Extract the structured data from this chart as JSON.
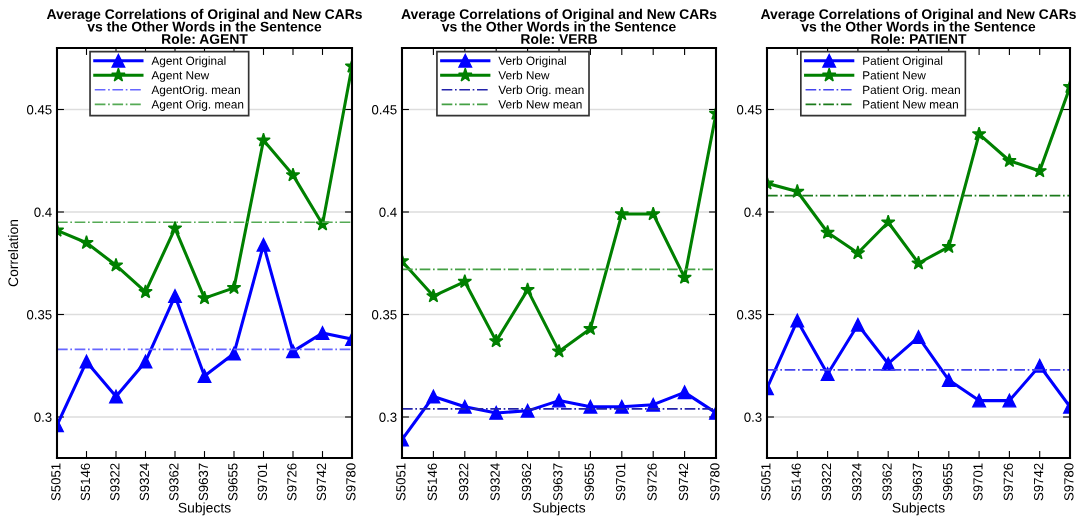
{
  "chart_data": [
    {
      "type": "line",
      "title": "Average Correlations of Original and New CARs\nvs the Other Words in the Sentence\nRole: AGENT",
      "xlabel": "Subjects",
      "ylabel": "Correlation",
      "categories": [
        "S5051",
        "S5146",
        "S9322",
        "S9324",
        "S9362",
        "S9637",
        "S9655",
        "S9701",
        "S9726",
        "S9742",
        "S9780"
      ],
      "series": [
        {
          "name": "Agent Original",
          "color": "#0000ff",
          "marker": "triangle",
          "values": [
            0.296,
            0.327,
            0.31,
            0.327,
            0.359,
            0.32,
            0.331,
            0.384,
            0.332,
            0.341,
            0.338
          ]
        },
        {
          "name": "Agent New",
          "color": "#008000",
          "marker": "star",
          "values": [
            0.391,
            0.385,
            0.374,
            0.361,
            0.392,
            0.358,
            0.363,
            0.435,
            0.418,
            0.394,
            0.471
          ]
        }
      ],
      "ref_lines": [
        {
          "axis": "y",
          "value": 0.333,
          "label": "AgentOrig. mean",
          "color": "#6666ff",
          "line_style": "dashdot"
        },
        {
          "axis": "y",
          "value": 0.395,
          "label": "Agent Orig. mean",
          "color": "#55aa55",
          "line_style": "dashdot"
        }
      ],
      "ylim": [
        0.28,
        0.48
      ],
      "yticks": [
        0.3,
        0.35,
        0.4,
        0.45
      ],
      "grid": "y",
      "legend": "top left",
      "line_style": "solid"
    },
    {
      "type": "line",
      "title": "Average Correlations of Original and New CARs\nvs the Other Words in the Sentence\nRole: VERB",
      "xlabel": "Subjects",
      "categories": [
        "S5051",
        "S5146",
        "S9322",
        "S9324",
        "S9362",
        "S9637",
        "S9655",
        "S9701",
        "S9726",
        "S9742",
        "S9780"
      ],
      "series": [
        {
          "name": "Verb Original",
          "color": "#0000ff",
          "marker": "triangle",
          "values": [
            0.289,
            0.31,
            0.305,
            0.302,
            0.303,
            0.308,
            0.305,
            0.305,
            0.306,
            0.312,
            0.302
          ]
        },
        {
          "name": "Verb New",
          "color": "#008000",
          "marker": "star",
          "values": [
            0.376,
            0.359,
            0.366,
            0.337,
            0.362,
            0.332,
            0.343,
            0.399,
            0.399,
            0.368,
            0.448
          ]
        }
      ],
      "ref_lines": [
        {
          "axis": "y",
          "value": 0.304,
          "label": "Verb Orig. mean",
          "color": "#2222aa",
          "line_style": "dashdot"
        },
        {
          "axis": "y",
          "value": 0.372,
          "label": "Verb New mean",
          "color": "#44a044",
          "line_style": "dashdot"
        }
      ],
      "ylim": [
        0.28,
        0.48
      ],
      "yticks": [
        0.3,
        0.35,
        0.4,
        0.45
      ],
      "grid": "y",
      "legend": "top left",
      "line_style": "solid"
    },
    {
      "type": "line",
      "title": "Average Correlations of Original and New CARs\nvs the Other Words in the Sentence\nRole: PATIENT",
      "xlabel": "Subjects",
      "categories": [
        "S5051",
        "S5146",
        "S9322",
        "S9324",
        "S9362",
        "S9637",
        "S9655",
        "S9701",
        "S9726",
        "S9742",
        "S9780"
      ],
      "series": [
        {
          "name": "Patient Original",
          "color": "#0000ff",
          "marker": "triangle",
          "values": [
            0.314,
            0.347,
            0.321,
            0.345,
            0.326,
            0.339,
            0.318,
            0.308,
            0.308,
            0.325,
            0.305
          ]
        },
        {
          "name": "Patient New",
          "color": "#008000",
          "marker": "star",
          "values": [
            0.414,
            0.41,
            0.39,
            0.38,
            0.395,
            0.375,
            0.383,
            0.438,
            0.425,
            0.42,
            0.461
          ]
        }
      ],
      "ref_lines": [
        {
          "axis": "y",
          "value": 0.323,
          "label": "Patient Orig. mean",
          "color": "#4444ee",
          "line_style": "dashdot"
        },
        {
          "axis": "y",
          "value": 0.408,
          "label": "Patient New mean",
          "color": "#1a7a1a",
          "line_style": "dashdot"
        }
      ],
      "ylim": [
        0.28,
        0.48
      ],
      "yticks": [
        0.3,
        0.35,
        0.4,
        0.45
      ],
      "grid": "y",
      "legend": "top left",
      "line_style": "solid"
    }
  ]
}
